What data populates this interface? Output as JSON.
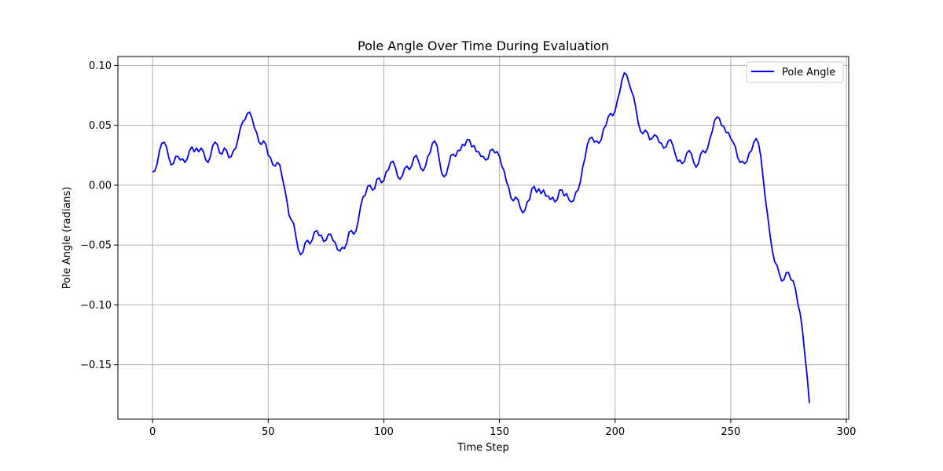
{
  "chart_data": {
    "type": "line",
    "title": "Pole Angle Over Time During Evaluation",
    "xlabel": "Time Step",
    "ylabel": "Pole Angle (radians)",
    "xlim": [
      -15,
      301
    ],
    "ylim": [
      -0.1955,
      0.1075
    ],
    "xticks": [
      0,
      50,
      100,
      150,
      200,
      250,
      300
    ],
    "yticks": [
      -0.15,
      -0.1,
      -0.05,
      0.0,
      0.05,
      0.1
    ],
    "xtick_labels": [
      "0",
      "50",
      "100",
      "150",
      "200",
      "250",
      "300"
    ],
    "ytick_labels": [
      "−0.15",
      "−0.10",
      "−0.05",
      "0.00",
      "0.05",
      "0.10"
    ],
    "grid": true,
    "legend_position": "top-right",
    "series": [
      {
        "name": "Pole Angle",
        "color": "#0000ff",
        "points": [
          [
            0,
            0.011
          ],
          [
            1,
            0.012
          ],
          [
            2,
            0.018
          ],
          [
            3,
            0.029
          ],
          [
            4,
            0.035
          ],
          [
            5,
            0.036
          ],
          [
            6,
            0.032
          ],
          [
            7,
            0.023
          ],
          [
            8,
            0.017
          ],
          [
            9,
            0.018
          ],
          [
            10,
            0.024
          ],
          [
            11,
            0.024
          ],
          [
            12,
            0.021
          ],
          [
            13,
            0.022
          ],
          [
            14,
            0.019
          ],
          [
            15,
            0.022
          ],
          [
            16,
            0.029
          ],
          [
            17,
            0.032
          ],
          [
            18,
            0.028
          ],
          [
            19,
            0.031
          ],
          [
            20,
            0.028
          ],
          [
            21,
            0.031
          ],
          [
            22,
            0.028
          ],
          [
            23,
            0.021
          ],
          [
            24,
            0.019
          ],
          [
            25,
            0.024
          ],
          [
            26,
            0.033
          ],
          [
            27,
            0.036
          ],
          [
            28,
            0.034
          ],
          [
            29,
            0.027
          ],
          [
            30,
            0.026
          ],
          [
            31,
            0.031
          ],
          [
            32,
            0.029
          ],
          [
            33,
            0.023
          ],
          [
            34,
            0.024
          ],
          [
            35,
            0.029
          ],
          [
            36,
            0.031
          ],
          [
            37,
            0.039
          ],
          [
            38,
            0.048
          ],
          [
            39,
            0.053
          ],
          [
            40,
            0.055
          ],
          [
            41,
            0.06
          ],
          [
            42,
            0.061
          ],
          [
            43,
            0.056
          ],
          [
            44,
            0.048
          ],
          [
            45,
            0.044
          ],
          [
            46,
            0.036
          ],
          [
            47,
            0.034
          ],
          [
            48,
            0.037
          ],
          [
            49,
            0.034
          ],
          [
            50,
            0.025
          ],
          [
            51,
            0.023
          ],
          [
            52,
            0.017
          ],
          [
            53,
            0.016
          ],
          [
            54,
            0.019
          ],
          [
            55,
            0.017
          ],
          [
            56,
            0.007
          ],
          [
            57,
            -0.002
          ],
          [
            58,
            -0.012
          ],
          [
            59,
            -0.025
          ],
          [
            60,
            -0.029
          ],
          [
            61,
            -0.032
          ],
          [
            62,
            -0.043
          ],
          [
            63,
            -0.054
          ],
          [
            64,
            -0.058
          ],
          [
            65,
            -0.056
          ],
          [
            66,
            -0.048
          ],
          [
            67,
            -0.046
          ],
          [
            68,
            -0.049
          ],
          [
            69,
            -0.046
          ],
          [
            70,
            -0.039
          ],
          [
            71,
            -0.038
          ],
          [
            72,
            -0.042
          ],
          [
            73,
            -0.042
          ],
          [
            74,
            -0.047
          ],
          [
            75,
            -0.046
          ],
          [
            76,
            -0.041
          ],
          [
            77,
            -0.041
          ],
          [
            78,
            -0.046
          ],
          [
            79,
            -0.048
          ],
          [
            80,
            -0.054
          ],
          [
            81,
            -0.055
          ],
          [
            82,
            -0.052
          ],
          [
            83,
            -0.053
          ],
          [
            84,
            -0.048
          ],
          [
            85,
            -0.039
          ],
          [
            86,
            -0.038
          ],
          [
            87,
            -0.041
          ],
          [
            88,
            -0.038
          ],
          [
            89,
            -0.029
          ],
          [
            90,
            -0.017
          ],
          [
            91,
            -0.01
          ],
          [
            92,
            -0.008
          ],
          [
            93,
            -0.001
          ],
          [
            94,
            0.0
          ],
          [
            95,
            -0.004
          ],
          [
            96,
            -0.003
          ],
          [
            97,
            0.005
          ],
          [
            98,
            0.006
          ],
          [
            99,
            0.002
          ],
          [
            100,
            0.004
          ],
          [
            101,
            0.011
          ],
          [
            102,
            0.013
          ],
          [
            103,
            0.019
          ],
          [
            104,
            0.02
          ],
          [
            105,
            0.015
          ],
          [
            106,
            0.007
          ],
          [
            107,
            0.005
          ],
          [
            108,
            0.008
          ],
          [
            109,
            0.014
          ],
          [
            110,
            0.016
          ],
          [
            111,
            0.013
          ],
          [
            112,
            0.016
          ],
          [
            113,
            0.023
          ],
          [
            114,
            0.025
          ],
          [
            115,
            0.02
          ],
          [
            116,
            0.014
          ],
          [
            117,
            0.012
          ],
          [
            118,
            0.016
          ],
          [
            119,
            0.024
          ],
          [
            120,
            0.027
          ],
          [
            121,
            0.035
          ],
          [
            122,
            0.037
          ],
          [
            123,
            0.033
          ],
          [
            124,
            0.021
          ],
          [
            125,
            0.01
          ],
          [
            126,
            0.007
          ],
          [
            127,
            0.009
          ],
          [
            128,
            0.017
          ],
          [
            129,
            0.025
          ],
          [
            130,
            0.026
          ],
          [
            131,
            0.024
          ],
          [
            132,
            0.029
          ],
          [
            133,
            0.029
          ],
          [
            134,
            0.034
          ],
          [
            135,
            0.033
          ],
          [
            136,
            0.038
          ],
          [
            137,
            0.038
          ],
          [
            138,
            0.032
          ],
          [
            139,
            0.033
          ],
          [
            140,
            0.028
          ],
          [
            141,
            0.028
          ],
          [
            142,
            0.024
          ],
          [
            143,
            0.024
          ],
          [
            144,
            0.021
          ],
          [
            145,
            0.022
          ],
          [
            146,
            0.029
          ],
          [
            147,
            0.03
          ],
          [
            148,
            0.027
          ],
          [
            149,
            0.028
          ],
          [
            150,
            0.024
          ],
          [
            151,
            0.016
          ],
          [
            152,
            0.012
          ],
          [
            153,
            0.003
          ],
          [
            154,
            -0.002
          ],
          [
            155,
            -0.011
          ],
          [
            156,
            -0.013
          ],
          [
            157,
            -0.01
          ],
          [
            158,
            -0.012
          ],
          [
            159,
            -0.019
          ],
          [
            160,
            -0.023
          ],
          [
            161,
            -0.021
          ],
          [
            162,
            -0.014
          ],
          [
            163,
            -0.012
          ],
          [
            164,
            -0.003
          ],
          [
            165,
            -0.001
          ],
          [
            166,
            -0.006
          ],
          [
            167,
            -0.003
          ],
          [
            168,
            -0.007
          ],
          [
            169,
            -0.004
          ],
          [
            170,
            -0.009
          ],
          [
            171,
            -0.009
          ],
          [
            172,
            -0.012
          ],
          [
            173,
            -0.01
          ],
          [
            174,
            -0.014
          ],
          [
            175,
            -0.012
          ],
          [
            176,
            -0.004
          ],
          [
            177,
            -0.004
          ],
          [
            178,
            -0.009
          ],
          [
            179,
            -0.007
          ],
          [
            180,
            -0.012
          ],
          [
            181,
            -0.014
          ],
          [
            182,
            -0.013
          ],
          [
            183,
            -0.006
          ],
          [
            184,
            -0.004
          ],
          [
            185,
            0.003
          ],
          [
            186,
            0.015
          ],
          [
            187,
            0.023
          ],
          [
            188,
            0.034
          ],
          [
            189,
            0.039
          ],
          [
            190,
            0.04
          ],
          [
            191,
            0.036
          ],
          [
            192,
            0.037
          ],
          [
            193,
            0.035
          ],
          [
            194,
            0.038
          ],
          [
            195,
            0.047
          ],
          [
            196,
            0.05
          ],
          [
            197,
            0.057
          ],
          [
            198,
            0.06
          ],
          [
            199,
            0.058
          ],
          [
            200,
            0.062
          ],
          [
            201,
            0.071
          ],
          [
            202,
            0.078
          ],
          [
            203,
            0.088
          ],
          [
            204,
            0.094
          ],
          [
            205,
            0.092
          ],
          [
            206,
            0.085
          ],
          [
            207,
            0.079
          ],
          [
            208,
            0.074
          ],
          [
            209,
            0.064
          ],
          [
            210,
            0.052
          ],
          [
            211,
            0.045
          ],
          [
            212,
            0.043
          ],
          [
            213,
            0.046
          ],
          [
            214,
            0.044
          ],
          [
            215,
            0.038
          ],
          [
            216,
            0.039
          ],
          [
            217,
            0.042
          ],
          [
            218,
            0.041
          ],
          [
            219,
            0.036
          ],
          [
            220,
            0.035
          ],
          [
            221,
            0.031
          ],
          [
            222,
            0.032
          ],
          [
            223,
            0.037
          ],
          [
            224,
            0.038
          ],
          [
            225,
            0.033
          ],
          [
            226,
            0.026
          ],
          [
            227,
            0.02
          ],
          [
            228,
            0.021
          ],
          [
            229,
            0.018
          ],
          [
            230,
            0.02
          ],
          [
            231,
            0.027
          ],
          [
            232,
            0.029
          ],
          [
            233,
            0.026
          ],
          [
            234,
            0.019
          ],
          [
            235,
            0.015
          ],
          [
            236,
            0.018
          ],
          [
            237,
            0.026
          ],
          [
            238,
            0.029
          ],
          [
            239,
            0.027
          ],
          [
            240,
            0.031
          ],
          [
            241,
            0.039
          ],
          [
            242,
            0.045
          ],
          [
            243,
            0.054
          ],
          [
            244,
            0.057
          ],
          [
            245,
            0.056
          ],
          [
            246,
            0.05
          ],
          [
            247,
            0.049
          ],
          [
            248,
            0.044
          ],
          [
            249,
            0.044
          ],
          [
            250,
            0.039
          ],
          [
            251,
            0.036
          ],
          [
            252,
            0.032
          ],
          [
            253,
            0.023
          ],
          [
            254,
            0.019
          ],
          [
            255,
            0.02
          ],
          [
            256,
            0.018
          ],
          [
            257,
            0.02
          ],
          [
            258,
            0.027
          ],
          [
            259,
            0.029
          ],
          [
            260,
            0.036
          ],
          [
            261,
            0.039
          ],
          [
            262,
            0.035
          ],
          [
            263,
            0.024
          ],
          [
            264,
            0.006
          ],
          [
            265,
            -0.012
          ],
          [
            266,
            -0.026
          ],
          [
            267,
            -0.042
          ],
          [
            268,
            -0.055
          ],
          [
            269,
            -0.064
          ],
          [
            270,
            -0.067
          ],
          [
            271,
            -0.074
          ],
          [
            272,
            -0.08
          ],
          [
            273,
            -0.079
          ],
          [
            274,
            -0.073
          ],
          [
            275,
            -0.073
          ],
          [
            276,
            -0.079
          ],
          [
            277,
            -0.08
          ],
          [
            278,
            -0.087
          ],
          [
            279,
            -0.099
          ],
          [
            280,
            -0.107
          ],
          [
            281,
            -0.121
          ],
          [
            282,
            -0.141
          ],
          [
            283,
            -0.159
          ],
          [
            284,
            -0.182
          ]
        ]
      }
    ]
  }
}
